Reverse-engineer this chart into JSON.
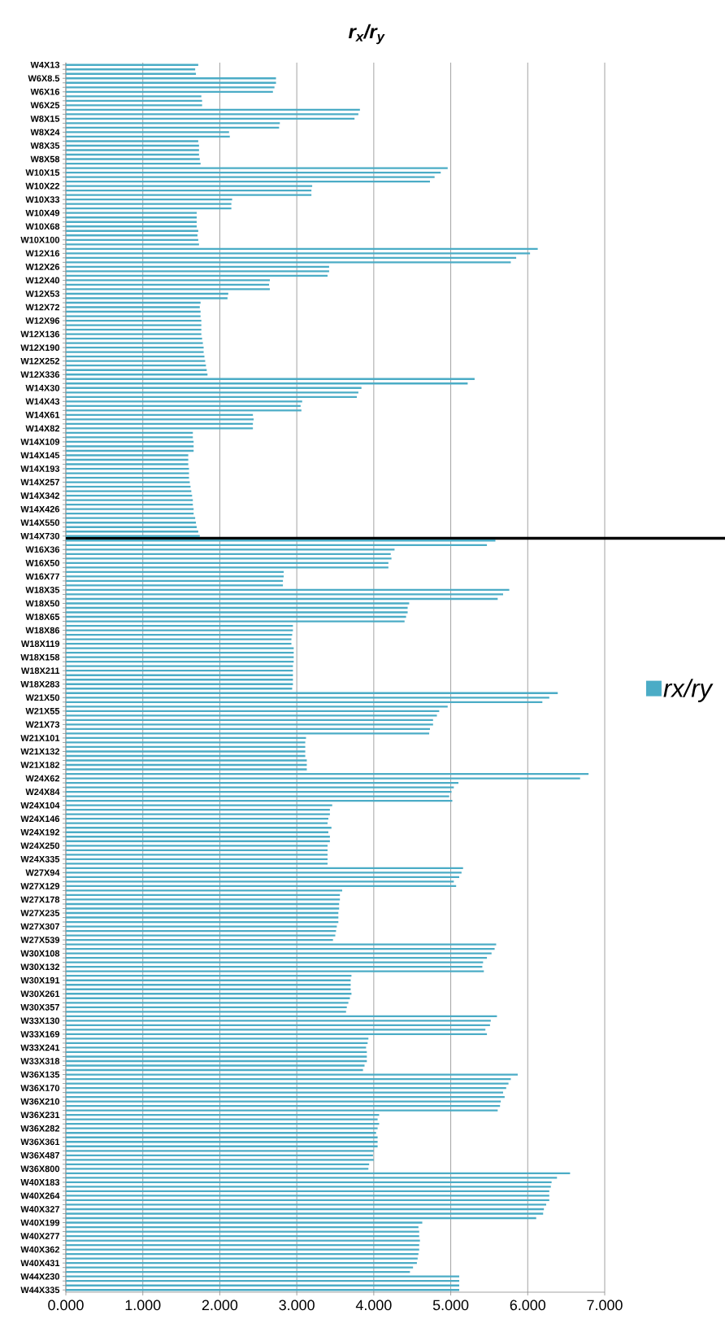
{
  "chart_data": {
    "type": "bar",
    "orientation": "horizontal",
    "title": "r$_{x}$/r$_{y}$",
    "categories": [
      "W4X13",
      null,
      null,
      "W6X8.5",
      null,
      null,
      "W6X16",
      null,
      null,
      "W6X25",
      null,
      null,
      "W8X15",
      null,
      null,
      "W8X24",
      null,
      null,
      "W8X35",
      null,
      null,
      "W8X58",
      null,
      null,
      "W10X15",
      null,
      null,
      "W10X22",
      null,
      null,
      "W10X33",
      null,
      null,
      "W10X49",
      null,
      null,
      "W10X68",
      null,
      null,
      "W10X100",
      null,
      null,
      "W12X16",
      null,
      null,
      "W12X26",
      null,
      null,
      "W12X40",
      null,
      null,
      "W12X53",
      null,
      null,
      "W12X72",
      null,
      null,
      "W12X96",
      null,
      null,
      "W12X136",
      null,
      null,
      "W12X190",
      null,
      null,
      "W12X252",
      null,
      null,
      "W12X336",
      null,
      null,
      "W14X30",
      null,
      null,
      "W14X43",
      null,
      null,
      "W14X61",
      null,
      null,
      "W14X82",
      null,
      null,
      "W14X109",
      null,
      null,
      "W14X145",
      null,
      null,
      "W14X193",
      null,
      null,
      "W14X257",
      null,
      null,
      "W14X342",
      null,
      null,
      "W14X426",
      null,
      null,
      "W14X550",
      null,
      null,
      "W14X730",
      null,
      null,
      "W16X36",
      null,
      null,
      "W16X50",
      null,
      null,
      "W16X77",
      null,
      null,
      "W18X35",
      null,
      null,
      "W18X50",
      null,
      null,
      "W18X65",
      null,
      null,
      "W18X86",
      null,
      null,
      "W18X119",
      null,
      null,
      "W18X158",
      null,
      null,
      "W18X211",
      null,
      null,
      "W18X283",
      null,
      null,
      "W21X50",
      null,
      null,
      "W21X55",
      null,
      null,
      "W21X73",
      null,
      null,
      "W21X101",
      null,
      null,
      "W21X132",
      null,
      null,
      "W21X182",
      null,
      null,
      "W24X62",
      null,
      null,
      "W24X84",
      null,
      null,
      "W24X104",
      null,
      null,
      "W24X146",
      null,
      null,
      "W24X192",
      null,
      null,
      "W24X250",
      null,
      null,
      "W24X335",
      null,
      null,
      "W27X94",
      null,
      null,
      "W27X129",
      null,
      null,
      "W27X178",
      null,
      null,
      "W27X235",
      null,
      null,
      "W27X307",
      null,
      null,
      "W27X539",
      null,
      null,
      "W30X108",
      null,
      null,
      "W30X132",
      null,
      null,
      "W30X191",
      null,
      null,
      "W30X261",
      null,
      null,
      "W30X357",
      null,
      null,
      "W33X130",
      null,
      null,
      "W33X169",
      null,
      null,
      "W33X241",
      null,
      null,
      "W33X318",
      null,
      null,
      "W36X135",
      null,
      null,
      "W36X170",
      null,
      null,
      "W36X210",
      null,
      null,
      "W36X231",
      null,
      null,
      "W36X282",
      null,
      null,
      "W36X361",
      null,
      null,
      "W36X487",
      null,
      null,
      "W36X800",
      null,
      null,
      "W40X183",
      null,
      null,
      "W40X264",
      null,
      null,
      "W40X327",
      null,
      null,
      "W40X199",
      null,
      null,
      "W40X277",
      null,
      null,
      "W40X362",
      null,
      null,
      "W40X431",
      null,
      null,
      "W44X230",
      null,
      null,
      "W44X335"
    ],
    "series": [
      {
        "name": "rx/ry",
        "color": "#4bacc6",
        "values": [
          1.72,
          1.68,
          1.69,
          2.73,
          2.73,
          2.71,
          2.69,
          1.76,
          1.77,
          1.77,
          3.82,
          3.8,
          3.75,
          2.78,
          2.77,
          2.12,
          2.13,
          1.72,
          1.73,
          1.73,
          1.73,
          1.74,
          1.75,
          4.96,
          4.87,
          4.79,
          4.73,
          3.2,
          3.19,
          3.19,
          2.16,
          2.15,
          2.15,
          1.7,
          1.7,
          1.7,
          1.7,
          1.72,
          1.71,
          1.72,
          1.73,
          6.13,
          6.03,
          5.85,
          5.78,
          3.42,
          3.42,
          3.4,
          2.65,
          2.64,
          2.65,
          2.11,
          2.1,
          1.75,
          1.74,
          1.75,
          1.75,
          1.76,
          1.76,
          1.76,
          1.76,
          1.77,
          1.78,
          1.79,
          1.79,
          1.8,
          1.81,
          1.82,
          1.83,
          1.84,
          5.31,
          5.22,
          3.84,
          3.8,
          3.78,
          3.07,
          3.05,
          3.06,
          2.43,
          2.44,
          2.43,
          2.43,
          1.65,
          1.65,
          1.66,
          1.66,
          1.66,
          1.59,
          1.59,
          1.59,
          1.6,
          1.6,
          1.6,
          1.61,
          1.62,
          1.63,
          1.64,
          1.65,
          1.65,
          1.66,
          1.66,
          1.68,
          1.69,
          1.7,
          1.72,
          1.74,
          5.58,
          5.47,
          4.27,
          4.22,
          4.23,
          4.19,
          4.19,
          2.83,
          2.83,
          2.82,
          2.82,
          5.76,
          5.68,
          5.61,
          4.46,
          4.44,
          4.44,
          4.42,
          4.4,
          2.95,
          2.95,
          2.94,
          2.93,
          2.93,
          2.96,
          2.96,
          2.96,
          2.96,
          2.95,
          2.95,
          2.95,
          2.95,
          2.95,
          2.94,
          6.39,
          6.28,
          6.19,
          4.96,
          4.85,
          4.82,
          4.77,
          4.77,
          4.73,
          4.72,
          3.12,
          3.11,
          3.11,
          3.11,
          3.11,
          3.13,
          3.13,
          3.13,
          6.79,
          6.68,
          5.1,
          5.04,
          5.01,
          4.98,
          5.02,
          3.46,
          3.43,
          3.43,
          3.41,
          3.4,
          3.45,
          3.41,
          3.43,
          3.43,
          3.4,
          3.4,
          3.4,
          3.4,
          3.4,
          5.16,
          5.14,
          5.11,
          5.04,
          5.07,
          3.59,
          3.56,
          3.56,
          3.55,
          3.55,
          3.54,
          3.54,
          3.54,
          3.52,
          3.51,
          3.5,
          3.47,
          5.59,
          5.57,
          5.53,
          5.47,
          5.42,
          5.41,
          5.43,
          3.71,
          3.7,
          3.7,
          3.7,
          3.71,
          3.69,
          3.67,
          3.65,
          3.64,
          5.6,
          5.52,
          5.51,
          5.45,
          5.47,
          3.93,
          3.92,
          3.9,
          3.91,
          3.91,
          3.91,
          3.88,
          3.86,
          5.87,
          5.78,
          5.75,
          5.72,
          5.68,
          5.7,
          5.65,
          5.64,
          5.61,
          4.07,
          4.05,
          4.07,
          4.05,
          4.03,
          4.05,
          4.05,
          4.05,
          4.0,
          3.99,
          4.0,
          3.94,
          3.93,
          6.55,
          6.38,
          6.31,
          6.3,
          6.28,
          6.28,
          6.28,
          6.24,
          6.21,
          6.2,
          6.11,
          4.63,
          4.58,
          4.59,
          4.59,
          4.6,
          4.59,
          4.59,
          4.58,
          4.57,
          4.56,
          4.51,
          4.47,
          5.11,
          5.11,
          5.11,
          5.11
        ]
      }
    ],
    "xlim": [
      0,
      7
    ],
    "xticks": [
      {
        "value": 0,
        "label": "0.000"
      },
      {
        "value": 1,
        "label": "1.000"
      },
      {
        "value": 2,
        "label": "2.000"
      },
      {
        "value": 3,
        "label": "3.000"
      },
      {
        "value": 4,
        "label": "4.000"
      },
      {
        "value": 5,
        "label": "5.000"
      },
      {
        "value": 6,
        "label": "6.000"
      },
      {
        "value": 7,
        "label": "7.000"
      }
    ],
    "grid": "x",
    "legend": "right",
    "ref_lines": [
      {
        "axis": "y",
        "value": "W14X730",
        "color": "#000000"
      }
    ]
  }
}
